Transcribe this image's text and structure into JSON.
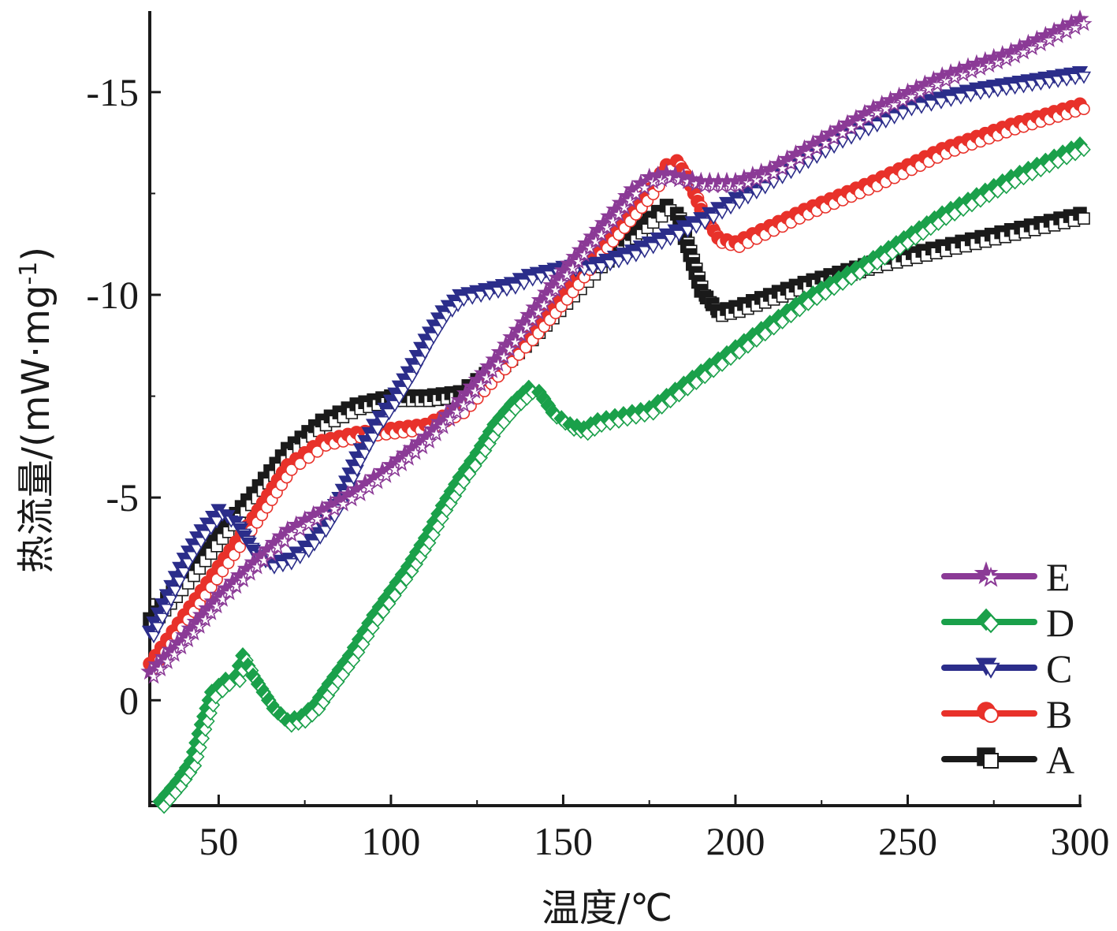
{
  "chart_data": {
    "type": "line",
    "title": "",
    "xlabel": "温度/℃",
    "ylabel": "热流量/(mW·mg",
    "ylabel_sup": "-1",
    "ylabel_close": ")",
    "xlim": [
      30,
      300
    ],
    "ylim": [
      2.6,
      -17
    ],
    "y_axis_inverted": true,
    "x_ticks": [
      50,
      100,
      150,
      200,
      250,
      300
    ],
    "x_tick_labels": [
      "50",
      "100",
      "150",
      "200",
      "250",
      "300"
    ],
    "y_ticks": [
      0,
      -5,
      -10,
      -15
    ],
    "y_tick_labels": [
      "0",
      "-5",
      "-10",
      "-15"
    ],
    "grid": false,
    "legend_position": "bottom-right",
    "legend_order": [
      "E",
      "D",
      "C",
      "B",
      "A"
    ],
    "series": [
      {
        "name": "A",
        "color": "#1a1a1a",
        "marker": "square",
        "x": [
          30,
          40,
          50,
          60,
          70,
          80,
          90,
          100,
          110,
          120,
          130,
          140,
          150,
          160,
          170,
          175,
          180,
          183,
          186,
          190,
          195,
          200,
          210,
          220,
          240,
          260,
          280,
          300
        ],
        "y": [
          -2.0,
          -3.0,
          -4.1,
          -5.1,
          -6.2,
          -6.9,
          -7.3,
          -7.5,
          -7.5,
          -7.6,
          -8.2,
          -9.0,
          -9.9,
          -10.8,
          -11.5,
          -11.9,
          -12.2,
          -12.0,
          -11.2,
          -10.1,
          -9.6,
          -9.7,
          -10.0,
          -10.3,
          -10.8,
          -11.2,
          -11.6,
          -12.0
        ]
      },
      {
        "name": "B",
        "color": "#e8312a",
        "marker": "circle",
        "x": [
          30,
          40,
          50,
          60,
          70,
          80,
          90,
          100,
          110,
          120,
          130,
          140,
          150,
          160,
          165,
          170,
          175,
          180,
          183,
          186,
          190,
          195,
          200,
          210,
          220,
          240,
          260,
          280,
          300
        ],
        "y": [
          -0.9,
          -2.1,
          -3.3,
          -4.5,
          -5.8,
          -6.4,
          -6.6,
          -6.7,
          -6.8,
          -7.2,
          -8.1,
          -9.0,
          -10.0,
          -11.1,
          -11.6,
          -12.1,
          -12.6,
          -13.2,
          -13.3,
          -12.9,
          -12.1,
          -11.4,
          -11.3,
          -11.7,
          -12.1,
          -12.8,
          -13.6,
          -14.2,
          -14.7
        ]
      },
      {
        "name": "C",
        "color": "#2b2d8a",
        "marker": "triangle-down",
        "x": [
          30,
          35,
          40,
          45,
          50,
          55,
          60,
          65,
          70,
          75,
          80,
          85,
          90,
          95,
          100,
          105,
          110,
          115,
          120,
          125,
          130,
          135,
          140,
          145,
          150,
          160,
          170,
          180,
          190,
          200,
          210,
          230,
          250,
          270,
          285,
          300
        ],
        "y": [
          -1.7,
          -2.6,
          -3.5,
          -4.2,
          -4.7,
          -4.4,
          -3.7,
          -3.4,
          -3.5,
          -3.8,
          -4.3,
          -5.0,
          -6.0,
          -6.8,
          -7.4,
          -8.1,
          -8.9,
          -9.6,
          -10.0,
          -10.1,
          -10.2,
          -10.3,
          -10.5,
          -10.6,
          -10.7,
          -10.8,
          -11.1,
          -11.5,
          -11.9,
          -12.4,
          -12.9,
          -13.9,
          -14.7,
          -15.1,
          -15.3,
          -15.5
        ]
      },
      {
        "name": "D",
        "color": "#1aa04a",
        "marker": "diamond",
        "x": [
          33,
          38,
          42,
          45,
          48,
          52,
          55,
          57,
          60,
          63,
          66,
          70,
          74,
          78,
          82,
          88,
          95,
          100,
          105,
          110,
          115,
          120,
          125,
          130,
          135,
          140,
          143,
          147,
          152,
          156,
          160,
          165,
          170,
          175,
          180,
          185,
          190,
          200,
          210,
          220,
          240,
          260,
          280,
          300
        ],
        "y": [
          2.5,
          2.0,
          1.5,
          0.6,
          -0.2,
          -0.5,
          -0.6,
          -1.1,
          -0.6,
          -0.2,
          0.2,
          0.5,
          0.4,
          0.1,
          -0.4,
          -1.1,
          -2.1,
          -2.7,
          -3.3,
          -4.0,
          -4.8,
          -5.5,
          -6.1,
          -6.8,
          -7.3,
          -7.7,
          -7.6,
          -7.1,
          -6.8,
          -6.7,
          -6.9,
          -7.0,
          -7.1,
          -7.2,
          -7.5,
          -7.8,
          -8.1,
          -8.7,
          -9.3,
          -9.9,
          -10.9,
          -12.0,
          -12.9,
          -13.7
        ]
      },
      {
        "name": "E",
        "color": "#8b3a96",
        "marker": "star",
        "x": [
          30,
          40,
          50,
          60,
          70,
          80,
          90,
          100,
          110,
          120,
          130,
          140,
          150,
          160,
          165,
          170,
          175,
          180,
          185,
          190,
          195,
          200,
          210,
          220,
          240,
          260,
          280,
          300
        ],
        "y": [
          -0.7,
          -1.6,
          -2.6,
          -3.4,
          -4.2,
          -4.7,
          -5.2,
          -5.8,
          -6.5,
          -7.4,
          -8.4,
          -9.5,
          -10.6,
          -11.6,
          -12.1,
          -12.6,
          -12.9,
          -13.0,
          -12.9,
          -12.8,
          -12.8,
          -12.8,
          -13.1,
          -13.6,
          -14.6,
          -15.4,
          -16.0,
          -16.8
        ]
      }
    ]
  }
}
